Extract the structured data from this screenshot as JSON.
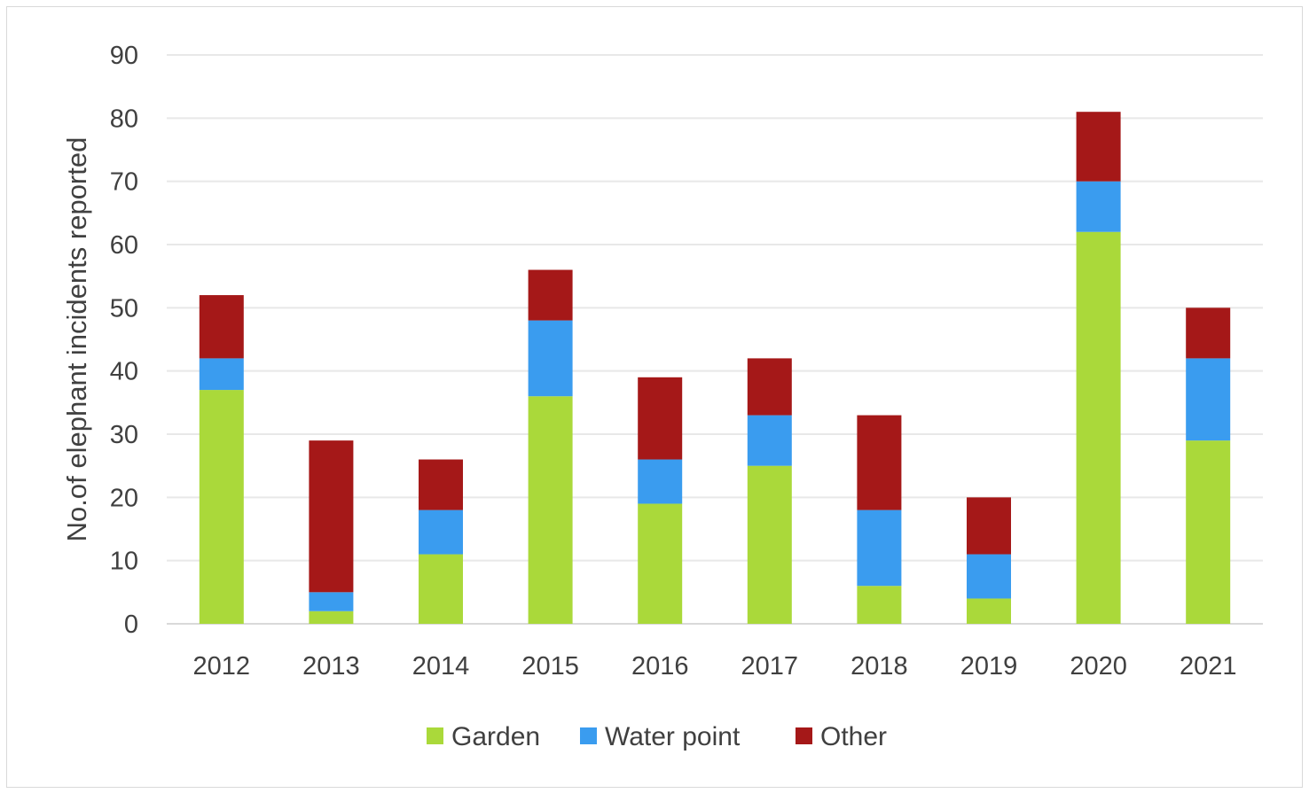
{
  "chart_data": {
    "type": "bar",
    "stacked": true,
    "title": "",
    "xlabel": "",
    "ylabel": "No.of elephant incidents reported",
    "ylim": [
      0,
      90
    ],
    "yticks": [
      0,
      10,
      20,
      30,
      40,
      50,
      60,
      70,
      80,
      90
    ],
    "grid": true,
    "legend_position": "bottom",
    "categories": [
      "2012",
      "2013",
      "2014",
      "2015",
      "2016",
      "2017",
      "2018",
      "2019",
      "2020",
      "2021"
    ],
    "series": [
      {
        "name": "Garden",
        "color": "#aad93a",
        "values": [
          37,
          2,
          11,
          36,
          19,
          25,
          6,
          4,
          62,
          29
        ]
      },
      {
        "name": "Water point",
        "color": "#3a9cef",
        "values": [
          5,
          3,
          7,
          12,
          7,
          8,
          12,
          7,
          8,
          13
        ]
      },
      {
        "name": "Other",
        "color": "#a51818",
        "values": [
          10,
          24,
          8,
          8,
          13,
          9,
          15,
          9,
          11,
          8
        ]
      }
    ]
  }
}
